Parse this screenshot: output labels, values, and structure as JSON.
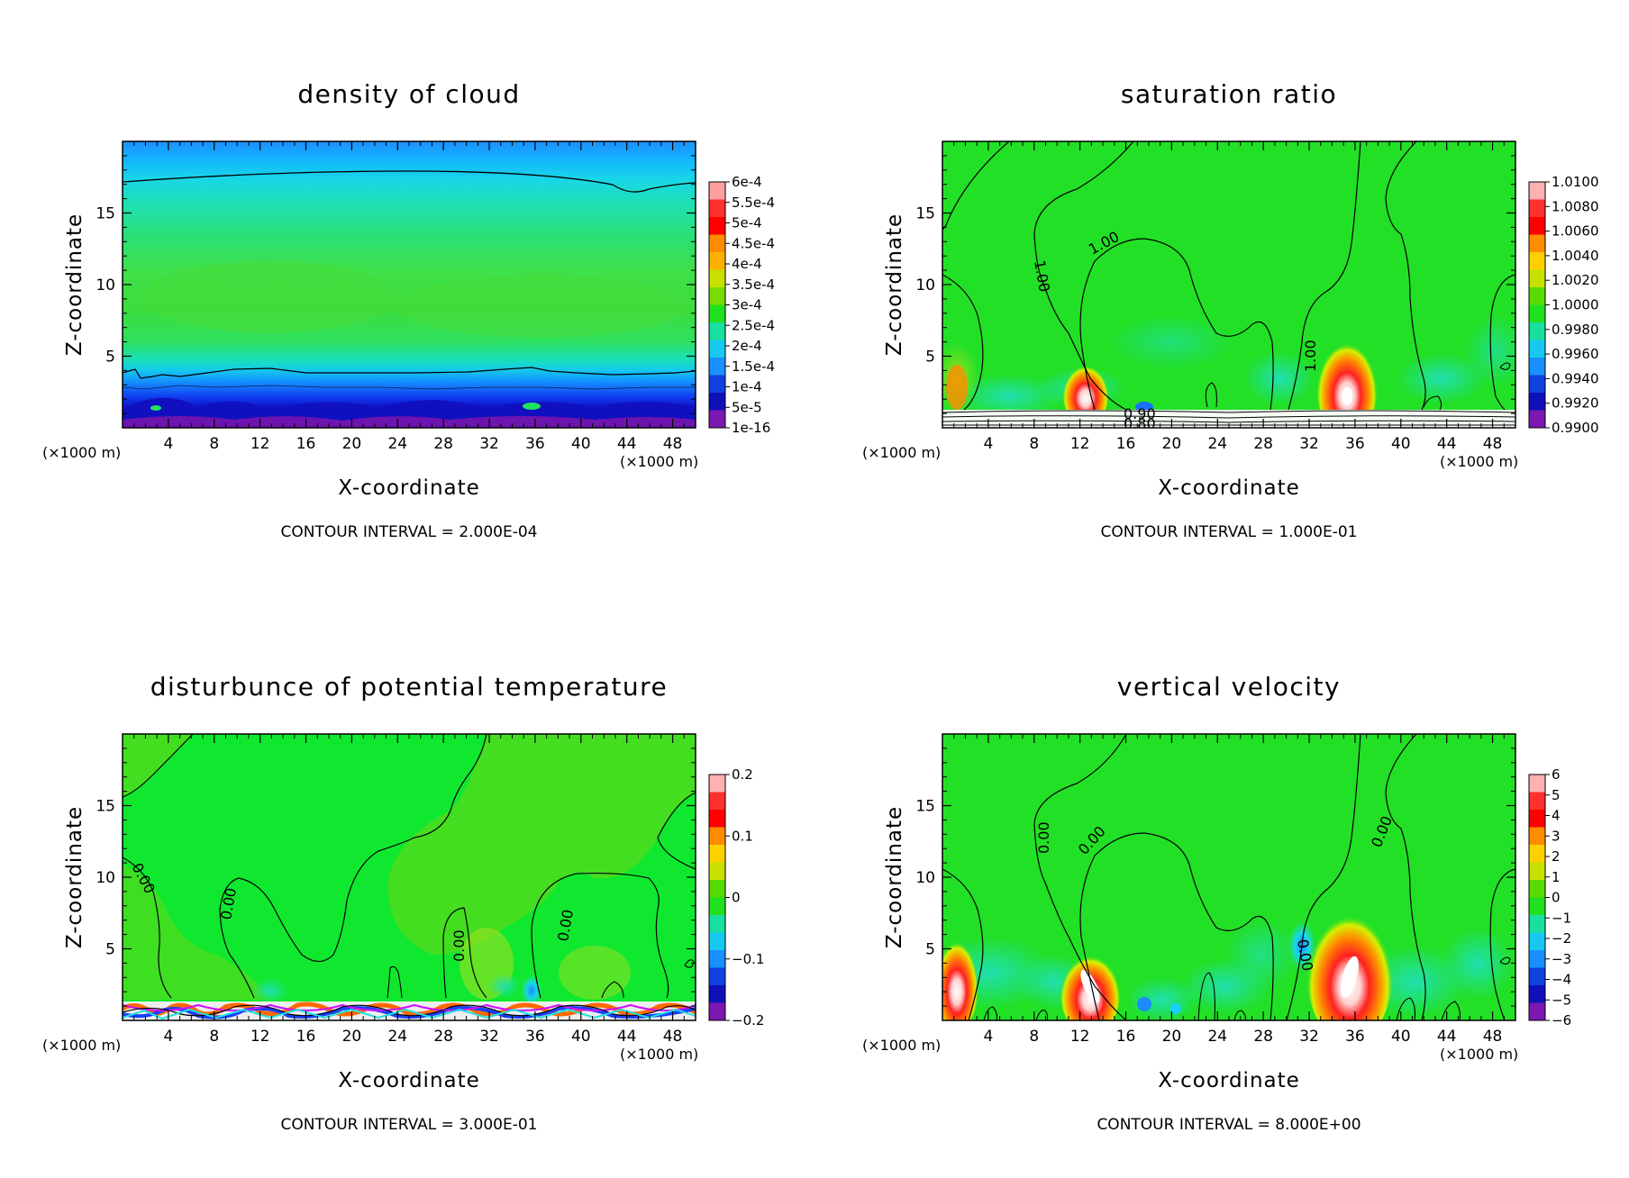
{
  "chart_data": [
    {
      "type": "heatmap",
      "id": "cloud",
      "title": "density of cloud",
      "xlabel": "X-coordinate",
      "ylabel": "Z-coordinate",
      "x_unit": "(×1000 m)",
      "z_unit": "(×1000 m)",
      "xlim": [
        0,
        50
      ],
      "ylim": [
        0,
        20
      ],
      "x_ticks": [
        4,
        8,
        12,
        16,
        20,
        24,
        28,
        32,
        36,
        40,
        44,
        48
      ],
      "y_ticks": [
        5,
        10,
        15
      ],
      "colorbar_labels": [
        "6e-4",
        "5.5e-4",
        "5e-4",
        "4.5e-4",
        "4e-4",
        "3.5e-4",
        "3e-4",
        "2.5e-4",
        "2e-4",
        "1.5e-4",
        "1e-4",
        "5e-5",
        "1e-16"
      ],
      "contour_labels": [],
      "contour_interval": "CONTOUR INTERVAL = 2.000E-04"
    },
    {
      "type": "heatmap",
      "id": "sat",
      "title": "saturation ratio",
      "xlabel": "X-coordinate",
      "ylabel": "Z-coordinate",
      "x_unit": "(×1000 m)",
      "z_unit": "(×1000 m)",
      "xlim": [
        0,
        50
      ],
      "ylim": [
        0,
        20
      ],
      "x_ticks": [
        4,
        8,
        12,
        16,
        20,
        24,
        28,
        32,
        36,
        40,
        44,
        48
      ],
      "y_ticks": [
        5,
        10,
        15
      ],
      "colorbar_labels": [
        "1.0100",
        "1.0080",
        "1.0060",
        "1.0040",
        "1.0020",
        "1.0000",
        "0.9980",
        "0.9960",
        "0.9940",
        "0.9920",
        "0.9900"
      ],
      "contour_labels": [
        "1.00",
        "1.00",
        "1.00",
        "0.90",
        "0.80"
      ],
      "contour_interval": "CONTOUR INTERVAL = 1.000E-01"
    },
    {
      "type": "heatmap",
      "id": "theta",
      "title": "disturbunce of potential temperature",
      "xlabel": "X-coordinate",
      "ylabel": "Z-coordinate",
      "x_unit": "(×1000 m)",
      "z_unit": "(×1000 m)",
      "xlim": [
        0,
        50
      ],
      "ylim": [
        0,
        20
      ],
      "x_ticks": [
        4,
        8,
        12,
        16,
        20,
        24,
        28,
        32,
        36,
        40,
        44,
        48
      ],
      "y_ticks": [
        5,
        10,
        15
      ],
      "colorbar_labels": [
        "0.2",
        "0.1",
        "0",
        "−0.1",
        "−0.2"
      ],
      "contour_labels": [
        "0.00",
        "0.00",
        "0.00",
        "0.00"
      ],
      "contour_interval": "CONTOUR INTERVAL = 3.000E-01"
    },
    {
      "type": "heatmap",
      "id": "w",
      "title": "vertical velocity",
      "xlabel": "X-coordinate",
      "ylabel": "Z-coordinate",
      "x_unit": "(×1000 m)",
      "z_unit": "(×1000 m)",
      "xlim": [
        0,
        50
      ],
      "ylim": [
        0,
        20
      ],
      "x_ticks": [
        4,
        8,
        12,
        16,
        20,
        24,
        28,
        32,
        36,
        40,
        44,
        48
      ],
      "y_ticks": [
        5,
        10,
        15
      ],
      "colorbar_labels": [
        "6",
        "5",
        "4",
        "3",
        "2",
        "1",
        "0",
        "−1",
        "−2",
        "−3",
        "−4",
        "−5",
        "−6"
      ],
      "contour_labels": [
        "0.00",
        "0.00",
        "0.00",
        "0.00"
      ],
      "contour_interval": "CONTOUR INTERVAL = 8.000E+00"
    }
  ]
}
